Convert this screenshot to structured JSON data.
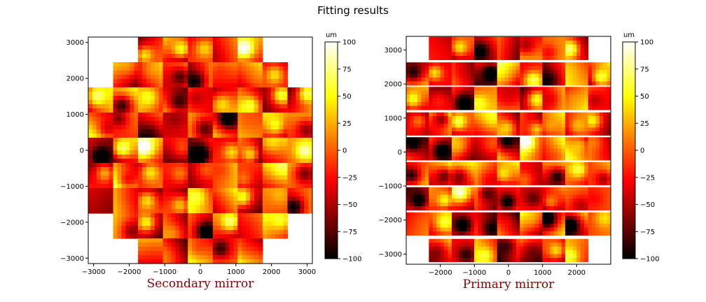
{
  "figure_title": "Fitting results",
  "chart_data": [
    {
      "type": "heatmap",
      "title": "Secondary mirror",
      "title_color": "#8b0000",
      "xlim": [
        -3150,
        3150
      ],
      "ylim": [
        -3150,
        3150
      ],
      "xticks": [
        -3000,
        -2000,
        -1000,
        0,
        1000,
        2000,
        3000
      ],
      "yticks": [
        -3000,
        -2000,
        -1000,
        0,
        1000,
        2000,
        3000
      ],
      "tick_labels_x": [
        "−3000",
        "−2000",
        "−1000",
        "0",
        "1000",
        "2000",
        "3000"
      ],
      "tick_labels_y": [
        "−3000",
        "−2000",
        "−1000",
        "0",
        "1000",
        "2000",
        "3000"
      ],
      "segment_size": 700,
      "row_centers_y": [
        2800,
        2100,
        1400,
        700,
        0,
        -700,
        -1400,
        -2100,
        -2800
      ],
      "row_columns": [
        [
          -1400,
          -700,
          0,
          700,
          1400
        ],
        [
          -2100,
          -1400,
          -700,
          0,
          700,
          1400,
          2100
        ],
        [
          -2800,
          -2100,
          -1400,
          -700,
          0,
          700,
          1400,
          2100,
          2800
        ],
        [
          -2800,
          -2100,
          -1400,
          -700,
          0,
          700,
          1400,
          2100,
          2800
        ],
        [
          -2800,
          -2100,
          -1400,
          -700,
          0,
          700,
          1400,
          2100,
          2800
        ],
        [
          -2800,
          -2100,
          -1400,
          -700,
          0,
          700,
          1400,
          2100,
          2800
        ],
        [
          -2800,
          -2100,
          -1400,
          -700,
          0,
          700,
          1400,
          2100,
          2800
        ],
        [
          -2100,
          -1400,
          -700,
          0,
          700,
          1400,
          2100
        ],
        [
          -1400,
          -700,
          0,
          700,
          1400
        ]
      ],
      "value_range": [
        -100,
        100
      ],
      "seed": 7,
      "colorbar": {
        "label": "um",
        "ticks": [
          100,
          75,
          50,
          25,
          0,
          -25,
          -50,
          -75,
          -100
        ],
        "tick_labels": [
          "100",
          "75",
          "50",
          "25",
          "0",
          "−25",
          "−50",
          "−75",
          "−100"
        ]
      }
    },
    {
      "type": "heatmap",
      "title": "Primary mirror",
      "title_color": "#8b0000",
      "xlim": [
        -3000,
        3000
      ],
      "ylim": [
        -3300,
        3400
      ],
      "xticks": [
        -2000,
        -1000,
        0,
        1000,
        2000
      ],
      "yticks": [
        -3000,
        -2000,
        -1000,
        0,
        1000,
        2000,
        3000
      ],
      "tick_labels_x": [
        "−2000",
        "−1000",
        "0",
        "1000",
        "2000"
      ],
      "tick_labels_y": [
        "−3000",
        "−2000",
        "−1000",
        "0",
        "1000",
        "2000",
        "3000"
      ],
      "segment_size": 670,
      "row_centers_y": [
        3050,
        2300,
        1580,
        830,
        100,
        -630,
        -1370,
        -2110,
        -2890
      ],
      "row_columns": [
        [
          -2000,
          -1330,
          -670,
          0,
          670,
          1330,
          2000
        ],
        [
          -2670,
          -2000,
          -1330,
          -670,
          0,
          670,
          1330,
          2000,
          2670
        ],
        [
          -2670,
          -2000,
          -1330,
          -670,
          0,
          670,
          1330,
          2000,
          2670
        ],
        [
          -2670,
          -2000,
          -1330,
          -670,
          0,
          670,
          1330,
          2000,
          2670
        ],
        [
          -2670,
          -2000,
          -1330,
          -670,
          0,
          670,
          1330,
          2000,
          2670
        ],
        [
          -2670,
          -2000,
          -1330,
          -670,
          0,
          670,
          1330,
          2000,
          2670
        ],
        [
          -2670,
          -2000,
          -1330,
          -670,
          0,
          670,
          1330,
          2000,
          2670
        ],
        [
          -2670,
          -2000,
          -1330,
          -670,
          0,
          670,
          1330,
          2000,
          2670
        ],
        [
          -2000,
          -1330,
          -670,
          0,
          670,
          1330,
          2000
        ]
      ],
      "value_range": [
        -100,
        100
      ],
      "seed": 23,
      "colorbar": {
        "label": "um",
        "ticks": [
          100,
          75,
          50,
          25,
          0,
          -25,
          -50,
          -75,
          -100
        ],
        "tick_labels": [
          "100",
          "75",
          "50",
          "25",
          "0",
          "−25",
          "−50",
          "−75",
          "−100"
        ]
      }
    }
  ]
}
